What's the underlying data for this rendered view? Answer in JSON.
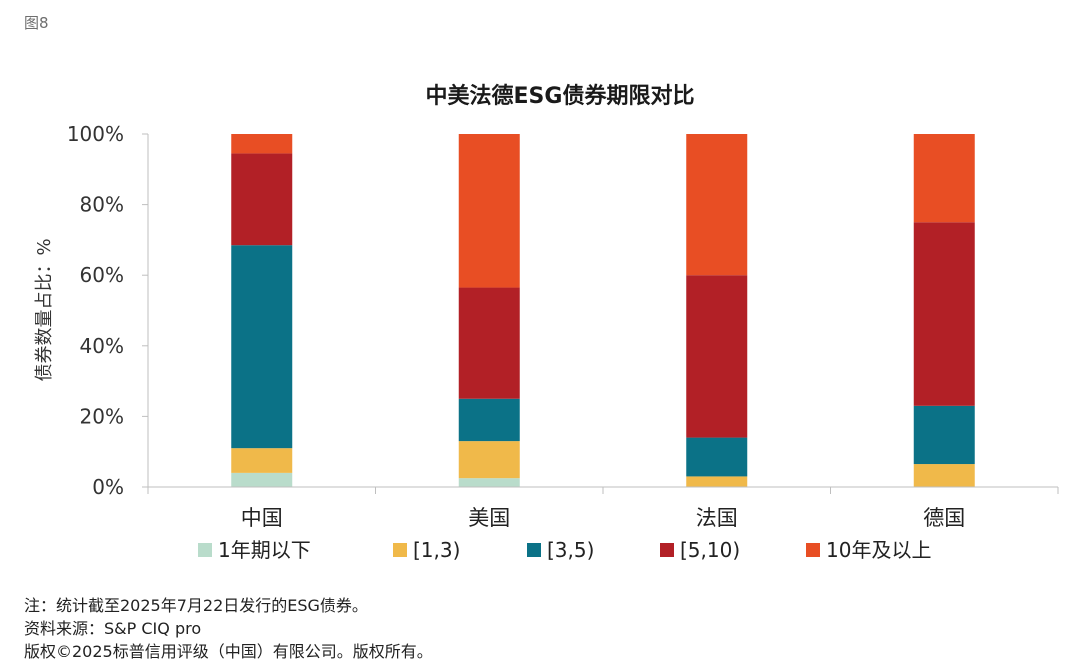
{
  "figure_label": "图8",
  "notes": [
    "注：统计截至2025年7月22日发行的ESG债券。",
    "资料来源：S&P CIQ pro",
    "版权©2025标普信用评级（中国）有限公司。版权所有。"
  ],
  "chart_data": {
    "type": "bar",
    "stacked": true,
    "title": "中美法德ESG债券期限对比",
    "xlabel": "",
    "ylabel": "债券数量占比：%",
    "ylim": [
      0,
      100
    ],
    "y_ticks": [
      "0%",
      "20%",
      "40%",
      "60%",
      "80%",
      "100%"
    ],
    "categories": [
      "中国",
      "美国",
      "法国",
      "德国"
    ],
    "legend_position": "bottom",
    "series": [
      {
        "name": "1年期以下",
        "color": "#b9dccb",
        "values": [
          4,
          2.5,
          0,
          0
        ]
      },
      {
        "name": "[1,3)",
        "color": "#f0b94a",
        "values": [
          7,
          10.5,
          3,
          6.5
        ]
      },
      {
        "name": "[3,5)",
        "color": "#0b7287",
        "values": [
          57.5,
          12,
          11,
          16.5
        ]
      },
      {
        "name": "[5,10)",
        "color": "#b22026",
        "values": [
          26,
          31.5,
          46,
          52
        ]
      },
      {
        "name": "10年及以上",
        "color": "#e84e24",
        "values": [
          5.5,
          43.5,
          40,
          25
        ]
      }
    ]
  }
}
